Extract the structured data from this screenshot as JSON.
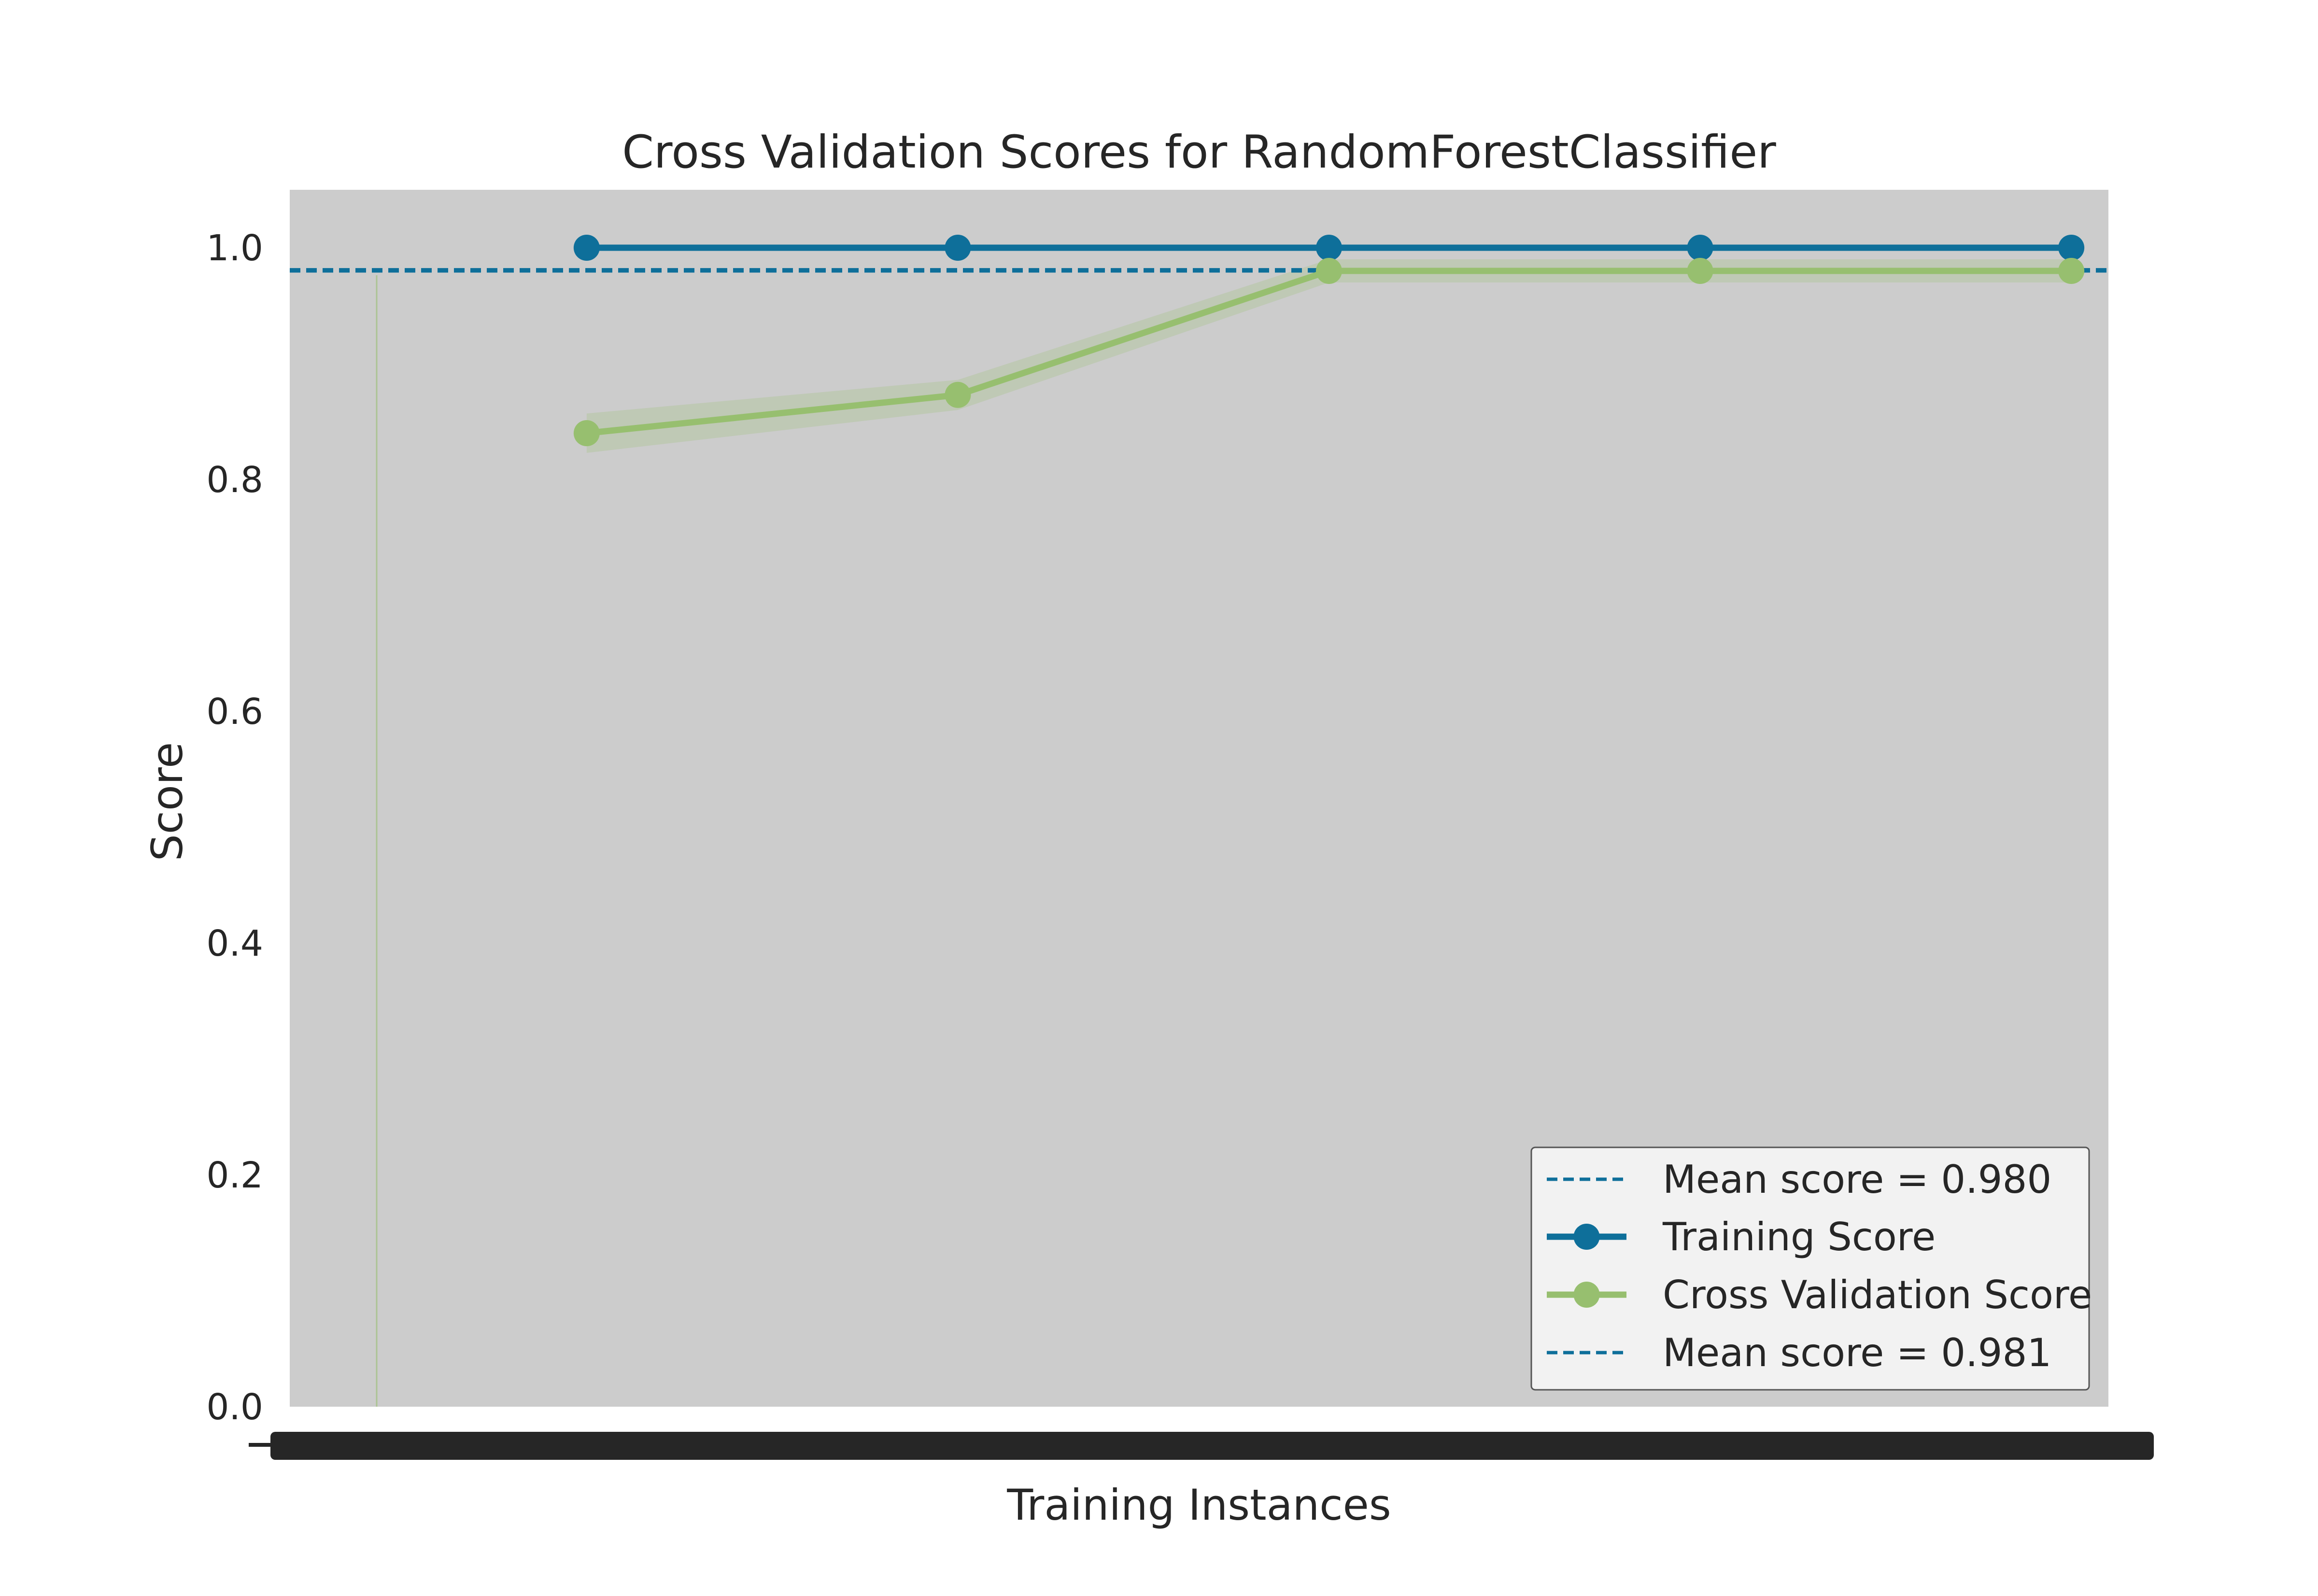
{
  "chart_data": {
    "type": "line",
    "title": "Cross Validation Scores for RandomForestClassifier",
    "xlabel": "Training Instances",
    "ylabel": "Score",
    "ylim": [
      0.0,
      1.05
    ],
    "yticks": [
      "0.0",
      "0.2",
      "0.4",
      "0.6",
      "0.8",
      "1.0"
    ],
    "x_tick_labels_legible": false,
    "legend_placement": "lower-right",
    "grid": false,
    "colors": {
      "axes_bg": "#cccccc",
      "training": "#0e6f9a",
      "cv": "#97bf6f",
      "mean_line": "#0e6f9a",
      "legend_bg": "#f2f2f2",
      "text": "#262626"
    },
    "series": [
      {
        "name": "Training Score",
        "points": [
          1,
          2,
          3,
          4,
          5
        ],
        "values": [
          1.0,
          1.0,
          1.0,
          1.0,
          1.0
        ],
        "band": [
          [
            1.0,
            1.0
          ],
          [
            1.0,
            1.0
          ],
          [
            1.0,
            1.0
          ],
          [
            1.0,
            1.0
          ],
          [
            1.0,
            1.0
          ]
        ]
      },
      {
        "name": "Cross Validation Score",
        "points": [
          1,
          2,
          3,
          4,
          5
        ],
        "values": [
          0.84,
          0.873,
          0.98,
          0.98,
          0.98
        ],
        "band": [
          [
            0.823,
            0.857
          ],
          [
            0.86,
            0.886
          ],
          [
            0.97,
            0.99
          ],
          [
            0.97,
            0.99
          ],
          [
            0.97,
            0.99
          ]
        ]
      }
    ],
    "mean_lines": [
      {
        "label": "Mean score = 0.980",
        "value": 0.98
      },
      {
        "label": "Mean score = 0.981",
        "value": 0.981
      }
    ],
    "legend": [
      {
        "label": "Mean score = 0.980",
        "kind": "dashed"
      },
      {
        "label": "Training Score",
        "kind": "marker-line",
        "series": "training"
      },
      {
        "label": "Cross Validation Score",
        "kind": "marker-line",
        "series": "cv"
      },
      {
        "label": "Mean score = 0.981",
        "kind": "dashed"
      }
    ]
  }
}
